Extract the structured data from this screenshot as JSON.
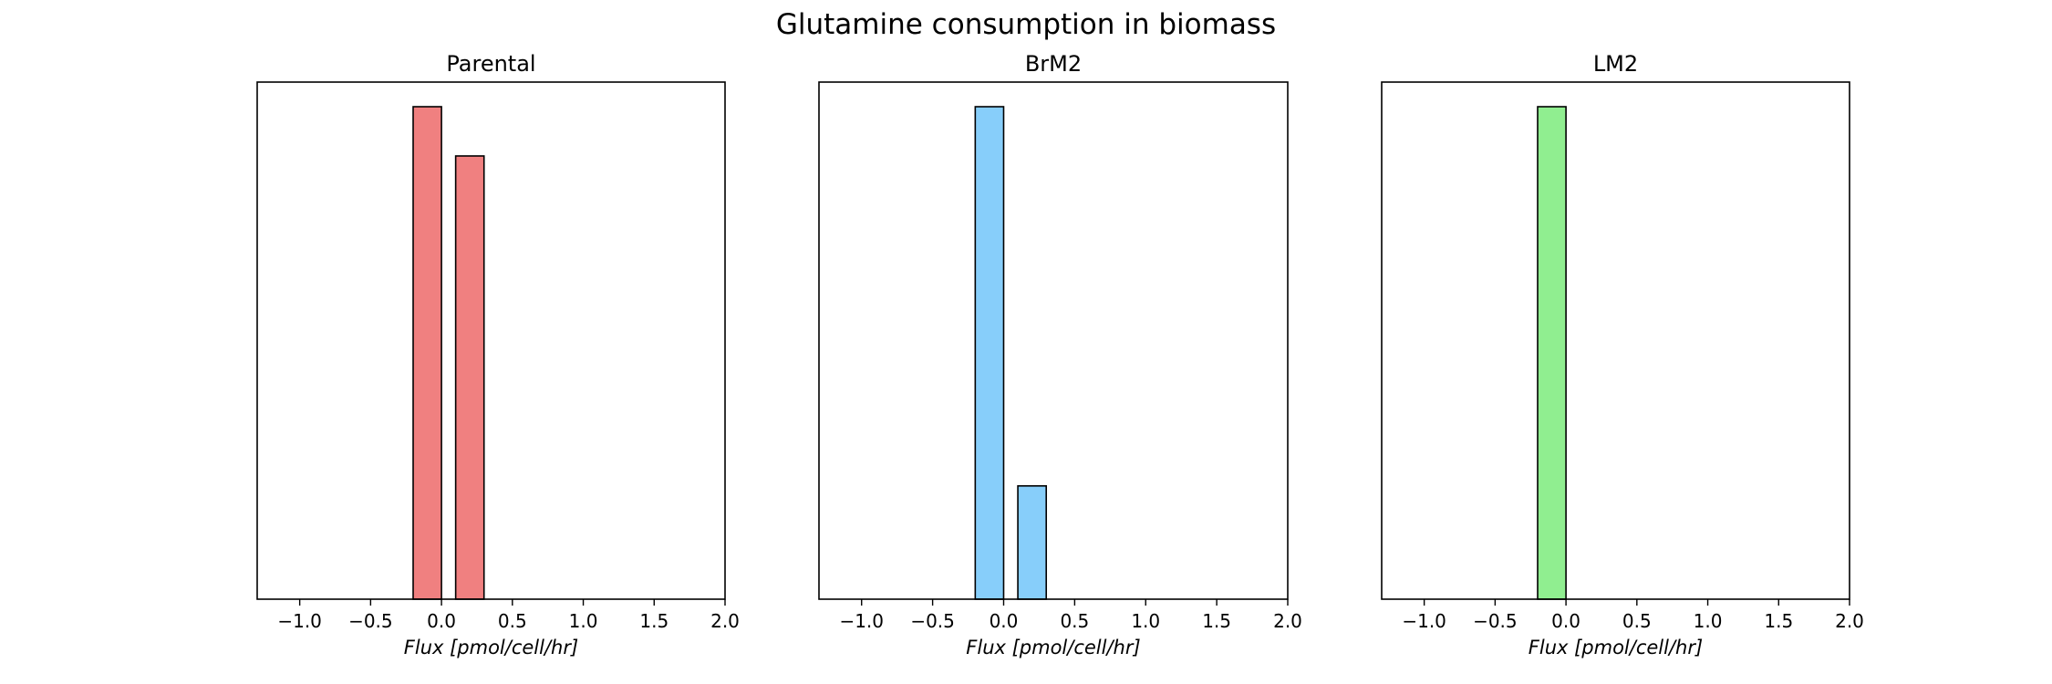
{
  "figure": {
    "title": "Glutamine consumption in biomass"
  },
  "chart_data": [
    {
      "type": "bar",
      "title": "Parental",
      "xlabel": "Flux [pmol/cell/hr]",
      "ylabel": "",
      "xlim": [
        -1.3,
        2.0
      ],
      "ylim": [
        0,
        1.05
      ],
      "xticks": [
        -1.0,
        -0.5,
        0.0,
        0.5,
        1.0,
        1.5,
        2.0
      ],
      "xtick_labels": [
        "−1.0",
        "−0.5",
        "0.0",
        "0.5",
        "1.0",
        "1.5",
        "2.0"
      ],
      "yticks_visible": false,
      "grid": false,
      "bar_width": 0.2,
      "color": "#f08080",
      "bars": [
        {
          "x": -0.1,
          "height": 1.0
        },
        {
          "x": 0.2,
          "height": 0.9
        }
      ]
    },
    {
      "type": "bar",
      "title": "BrM2",
      "xlabel": "Flux [pmol/cell/hr]",
      "ylabel": "",
      "xlim": [
        -1.3,
        2.0
      ],
      "ylim": [
        0,
        1.05
      ],
      "xticks": [
        -1.0,
        -0.5,
        0.0,
        0.5,
        1.0,
        1.5,
        2.0
      ],
      "xtick_labels": [
        "−1.0",
        "−0.5",
        "0.0",
        "0.5",
        "1.0",
        "1.5",
        "2.0"
      ],
      "yticks_visible": false,
      "grid": false,
      "bar_width": 0.2,
      "color": "#87cefa",
      "bars": [
        {
          "x": -0.1,
          "height": 1.0
        },
        {
          "x": 0.2,
          "height": 0.23
        }
      ]
    },
    {
      "type": "bar",
      "title": "LM2",
      "xlabel": "Flux [pmol/cell/hr]",
      "ylabel": "",
      "xlim": [
        -1.3,
        2.0
      ],
      "ylim": [
        0,
        1.05
      ],
      "xticks": [
        -1.0,
        -0.5,
        0.0,
        0.5,
        1.0,
        1.5,
        2.0
      ],
      "xtick_labels": [
        "−1.0",
        "−0.5",
        "0.0",
        "0.5",
        "1.0",
        "1.5",
        "2.0"
      ],
      "yticks_visible": false,
      "grid": false,
      "bar_width": 0.2,
      "color": "#90ee90",
      "bars": [
        {
          "x": -0.1,
          "height": 1.0
        }
      ]
    }
  ]
}
